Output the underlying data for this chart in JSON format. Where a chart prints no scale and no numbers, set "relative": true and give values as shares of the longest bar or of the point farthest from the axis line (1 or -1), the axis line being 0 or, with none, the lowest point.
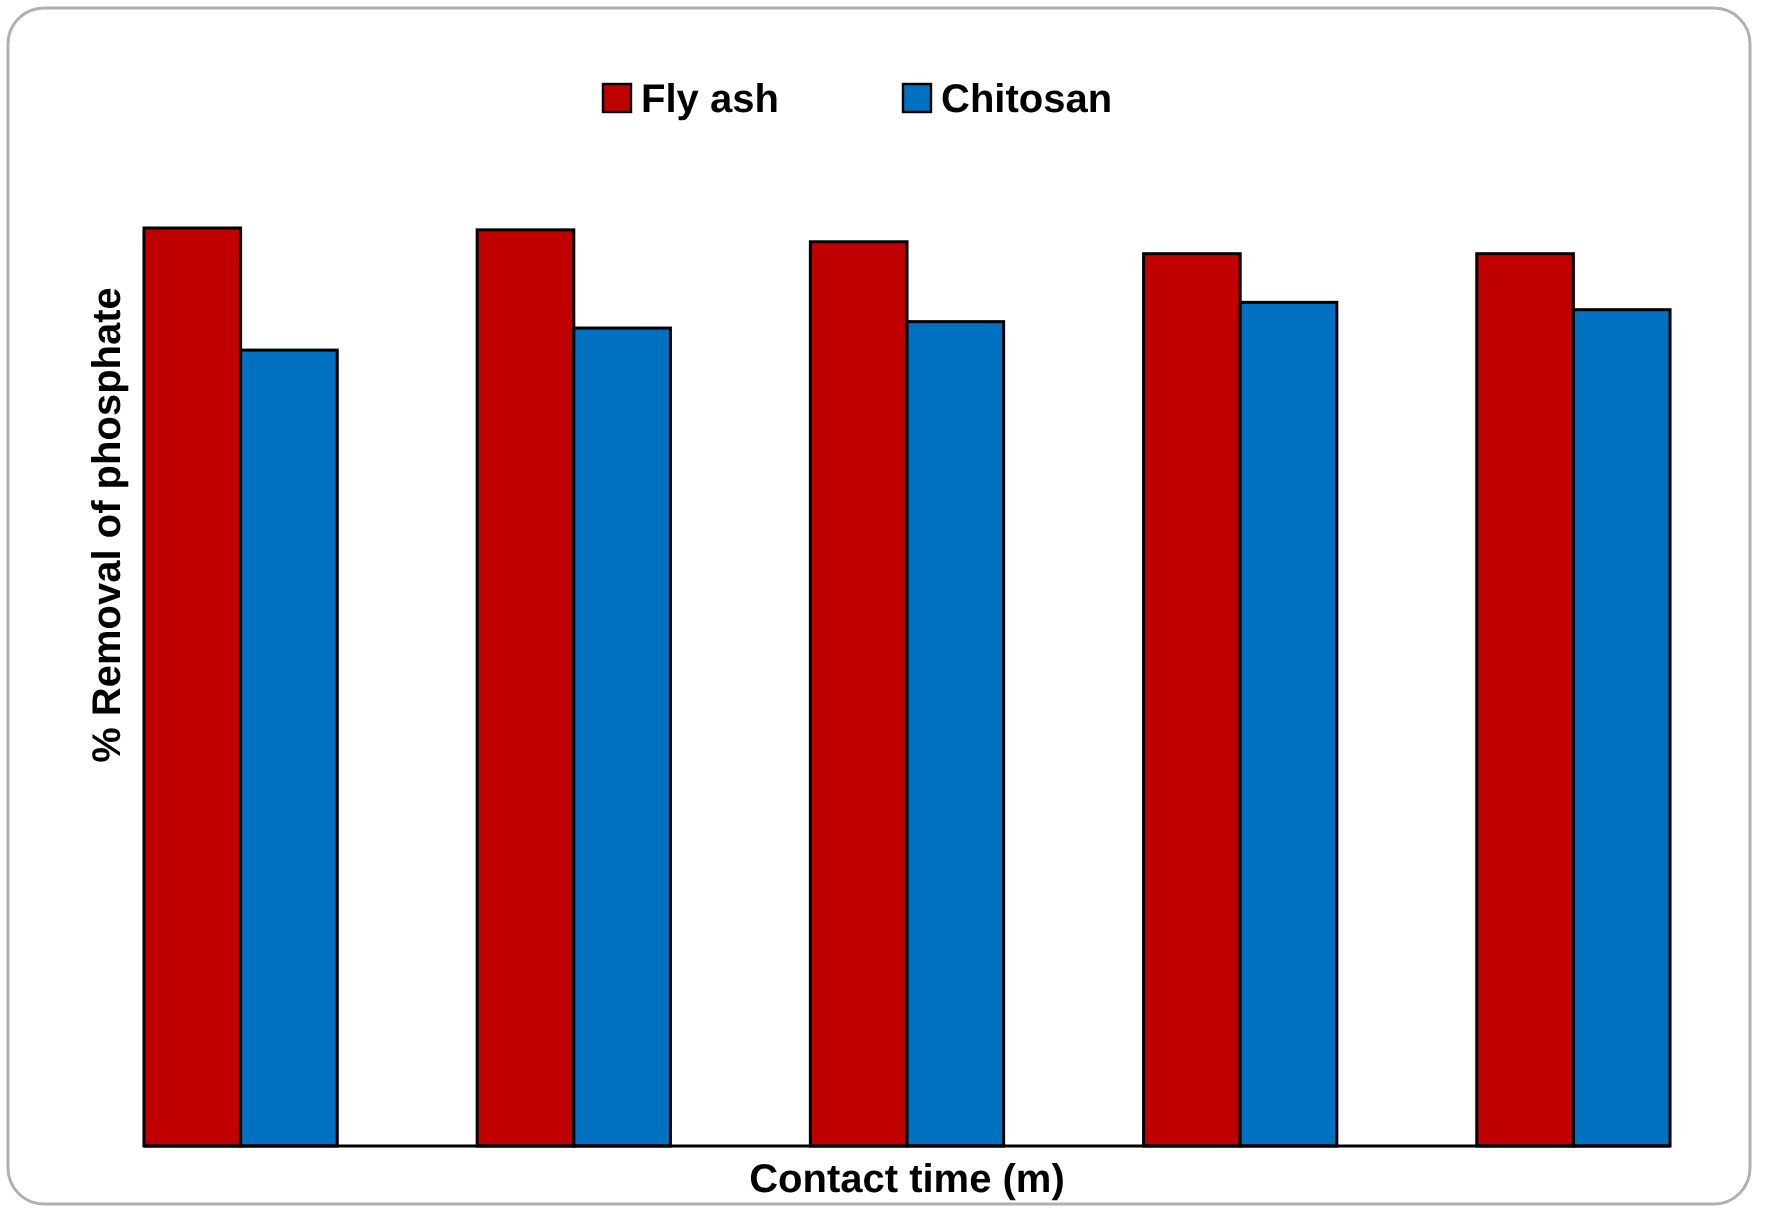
{
  "chart_data": {
    "type": "bar",
    "relative": true,
    "xlabel": "Contact time (m)",
    "ylabel": "% Removal of phosphate",
    "legend": "top",
    "categories": [
      null,
      null,
      null,
      null,
      null
    ],
    "series": [
      {
        "name": "Fly ash",
        "color": "#c00000",
        "values": [
          1,
          0.998,
          0.985,
          0.972,
          0.972
        ]
      },
      {
        "name": "Chitosan",
        "color": "#0070c0",
        "values": [
          0.867,
          0.891,
          0.898,
          0.919,
          0.911
        ]
      }
    ]
  }
}
